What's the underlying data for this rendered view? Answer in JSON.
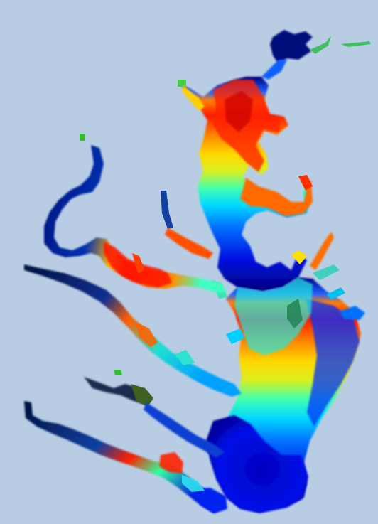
{
  "map": {
    "background_color": "#b8cde3",
    "colormap": {
      "name": "jet",
      "stops": [
        "#00007f",
        "#0000ff",
        "#00a0ff",
        "#00ffff",
        "#7fff7f",
        "#ffff00",
        "#ff7f00",
        "#ff0000",
        "#b00000"
      ]
    }
  }
}
